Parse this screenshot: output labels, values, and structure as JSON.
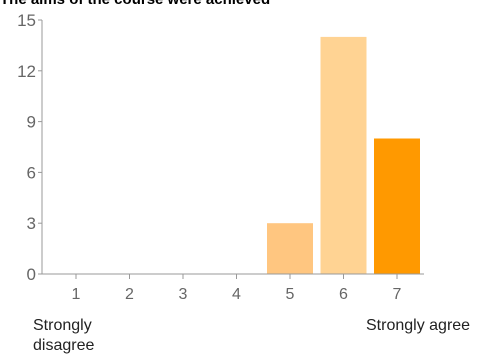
{
  "chart_data": {
    "type": "bar",
    "title": "The aims of the course were achieved",
    "categories": [
      "1",
      "2",
      "3",
      "4",
      "5",
      "6",
      "7"
    ],
    "values": [
      0,
      0,
      0,
      0,
      3,
      14,
      8
    ],
    "ylim": [
      0,
      15
    ],
    "yticks": [
      0,
      3,
      6,
      9,
      12,
      15
    ],
    "grid": false,
    "bar_colors": [
      "#ffc680",
      "#ffc680",
      "#ffc680",
      "#ffc680",
      "#ffc680",
      "#ffd393",
      "#ff9900"
    ],
    "axis_color": "#999999",
    "tick_text_color": "#666666",
    "scale_labels": {
      "low": "Strongly disagree",
      "high": "Strongly agree"
    }
  }
}
